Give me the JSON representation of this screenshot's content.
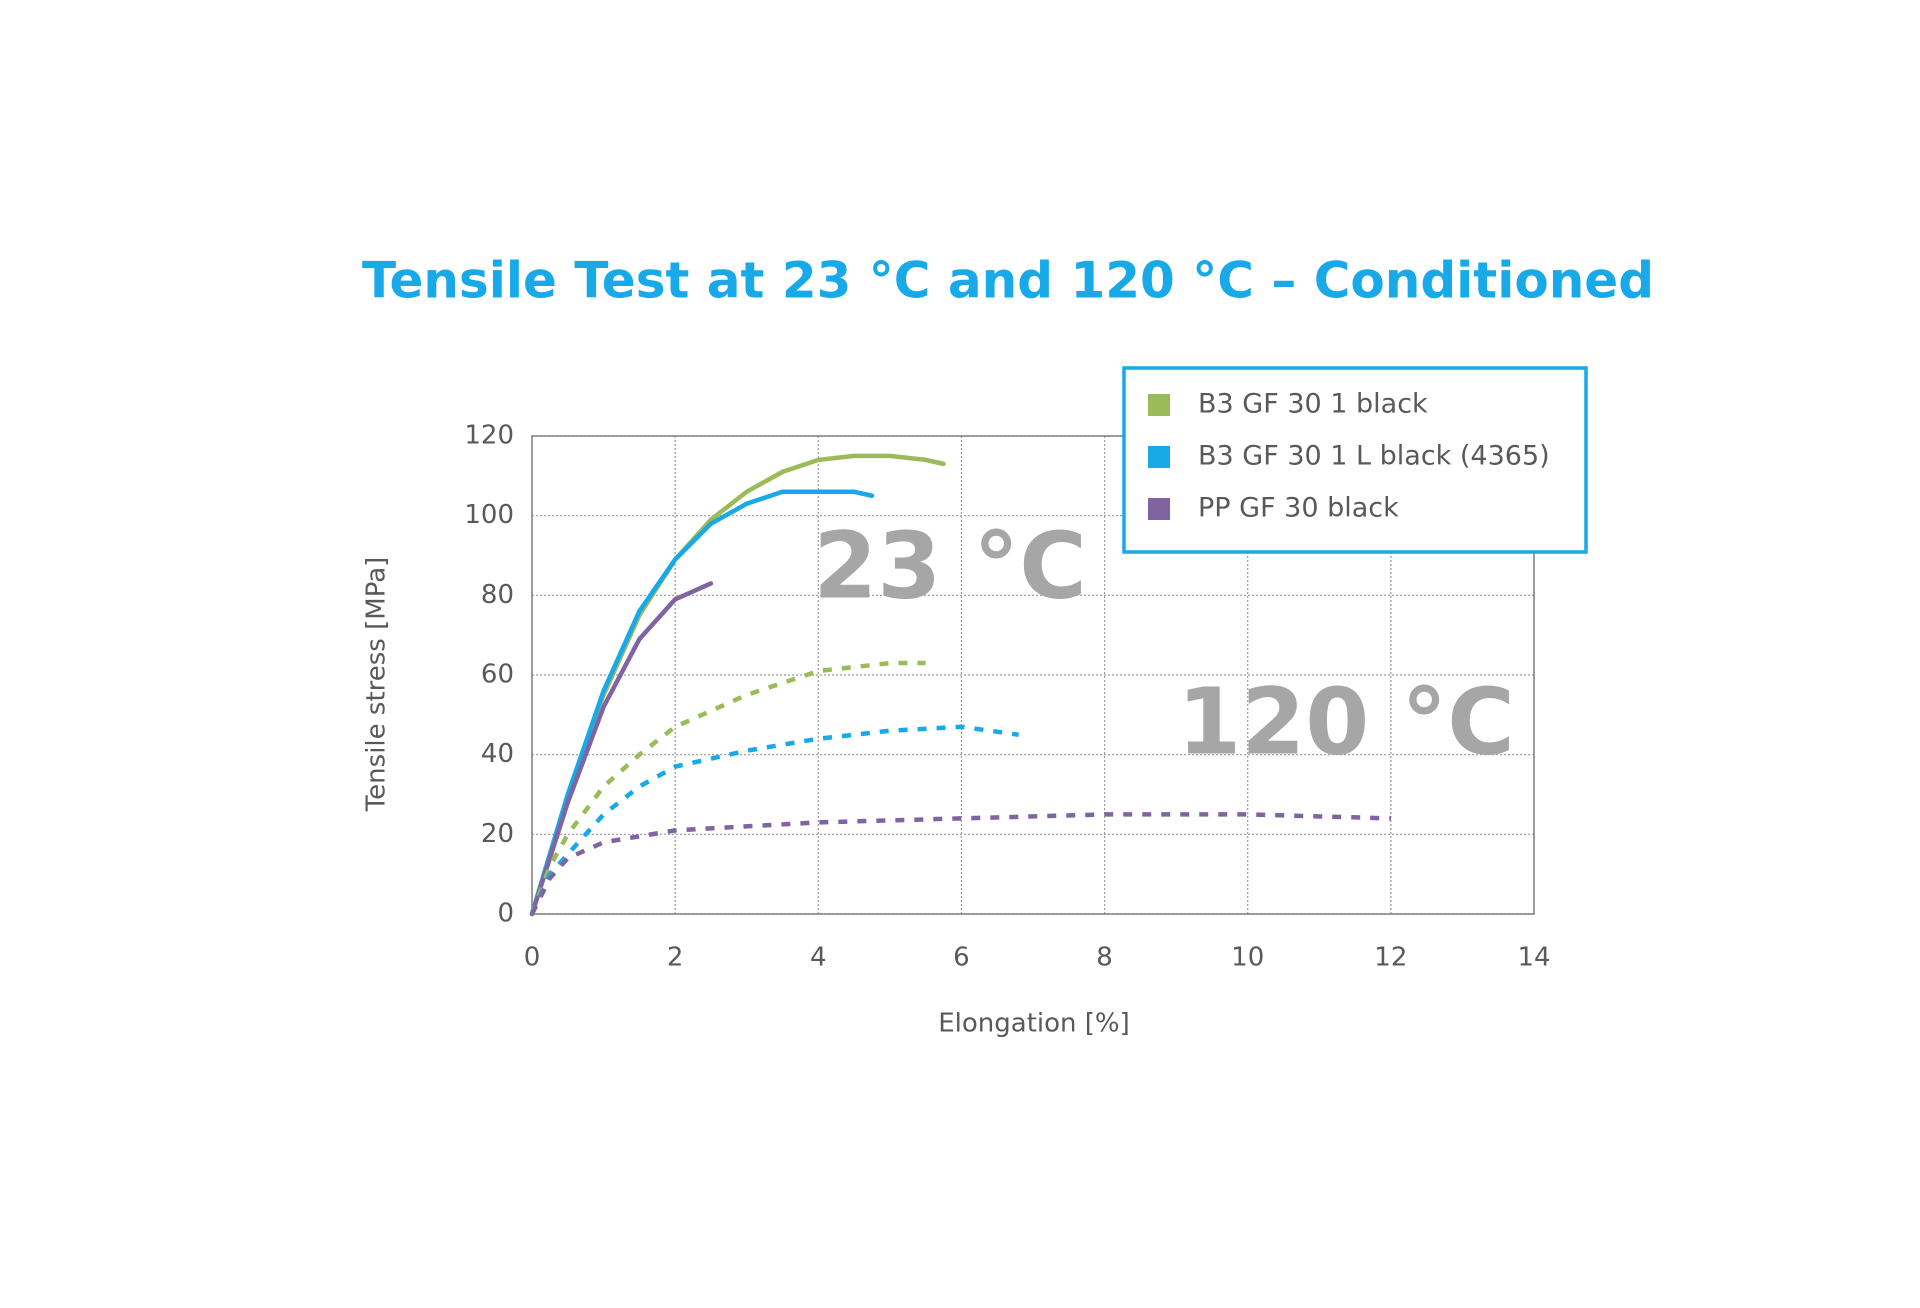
{
  "chart_data": {
    "type": "line",
    "title": "Tensile Test at 23 °C and 120 °C – Conditioned",
    "xlabel": "Elongation [%]",
    "ylabel": "Tensile stress [MPa]",
    "xlim": [
      0,
      14
    ],
    "xticks": [
      0,
      2,
      4,
      6,
      8,
      10,
      12,
      14
    ],
    "ylim": [
      0,
      120
    ],
    "yticks": [
      0,
      20,
      40,
      60,
      80,
      100,
      120
    ],
    "grid": true,
    "legend": "top-right",
    "annotations": [
      "23 °C",
      "120 °C"
    ],
    "series": [
      {
        "name": "B3 GF 30 1 black",
        "color": "#9bbb59",
        "x": [
          0,
          0.5,
          1,
          1.5,
          2,
          2.5,
          3,
          3.5,
          4,
          4.5,
          5,
          5.5,
          5.75
        ],
        "values": [
          0,
          30,
          55,
          75,
          89,
          99,
          106,
          111,
          114,
          115,
          115,
          114,
          113
        ]
      },
      {
        "name": "B3 GF 30 1 L black (4365)",
        "color": "#17a9e8",
        "x": [
          0,
          0.5,
          1,
          1.5,
          2,
          2.5,
          3,
          3.5,
          4,
          4.5,
          4.75
        ],
        "values": [
          0,
          30,
          56,
          76,
          89,
          98,
          103,
          106,
          106,
          106,
          105
        ]
      },
      {
        "name": "PP GF 30 black",
        "color": "#8064a2",
        "x": [
          0,
          0.5,
          1,
          1.5,
          2,
          2.5
        ],
        "values": [
          0,
          28,
          52,
          69,
          79,
          83
        ]
      },
      {
        "color": "#9bbb59",
        "dash": true,
        "x": [
          0,
          0.25,
          0.5,
          1,
          1.5,
          2,
          3,
          4,
          5,
          5.5
        ],
        "values": [
          0,
          12,
          20,
          32,
          40,
          47,
          55,
          61,
          63,
          63
        ]
      },
      {
        "color": "#17a9e8",
        "dash": true,
        "x": [
          0,
          0.25,
          0.5,
          1,
          1.5,
          2,
          3,
          4,
          5,
          6,
          6.8
        ],
        "values": [
          0,
          10,
          15,
          25,
          32,
          37,
          41,
          44,
          46,
          47,
          45
        ]
      },
      {
        "color": "#8064a2",
        "dash": true,
        "x": [
          0,
          0.25,
          0.5,
          1,
          2,
          4,
          6,
          8,
          10,
          12
        ],
        "values": [
          0,
          9,
          14,
          18,
          21,
          23,
          24,
          25,
          25,
          24
        ]
      }
    ]
  }
}
